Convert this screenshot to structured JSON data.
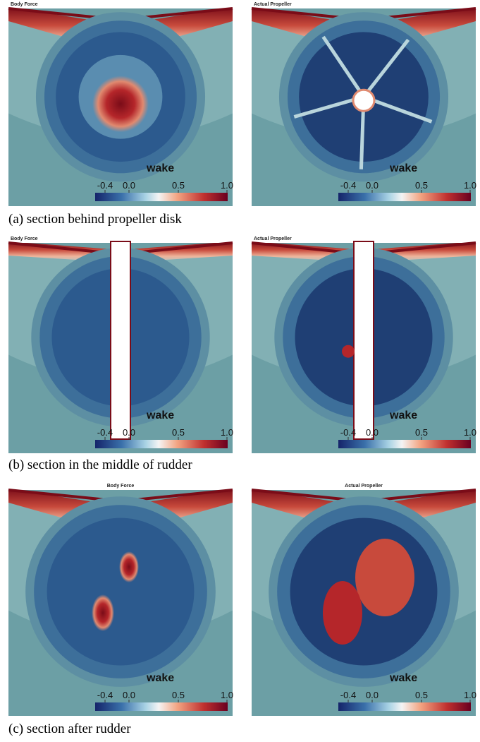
{
  "figure": {
    "rows": [
      {
        "caption": "(a) section behind propeller disk",
        "panels": [
          {
            "title": "Body Force",
            "colorbar": {
              "label": "wake",
              "ticks": [
                "-0.4",
                "0.0",
                "0.5",
                "1.0"
              ]
            }
          },
          {
            "title": "Actual Propeller",
            "colorbar": {
              "label": "wake",
              "ticks": [
                "-0.4",
                "0.0",
                "0.5",
                "1.0"
              ]
            }
          }
        ]
      },
      {
        "caption": "(b) section in the middle of rudder",
        "panels": [
          {
            "title": "Body Force",
            "colorbar": {
              "label": "wake",
              "ticks": [
                "-0.4",
                "0.0",
                "0.5",
                "1.0"
              ]
            }
          },
          {
            "title": "Actual Propeller",
            "colorbar": {
              "label": "wake",
              "ticks": [
                "-0.4",
                "0.0",
                "0.5",
                "1.0"
              ]
            }
          }
        ]
      },
      {
        "caption": "(c) section after rudder",
        "panels": [
          {
            "title": "Body Force",
            "colorbar": {
              "label": "wake",
              "ticks": [
                "-0.4",
                "0.0",
                "0.5",
                "1.0"
              ]
            }
          },
          {
            "title": "Actual Propeller",
            "colorbar": {
              "label": "wake",
              "ticks": [
                "-0.4",
                "0.0",
                "0.5",
                "1.0"
              ]
            }
          }
        ]
      }
    ]
  }
}
